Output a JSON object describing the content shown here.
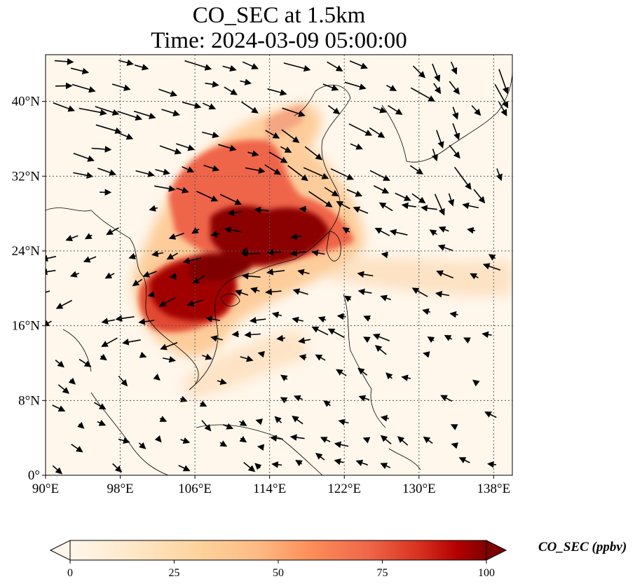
{
  "title": {
    "line1": "CO_SEC at 1.5km",
    "line2": "Time: 2024-03-09 05:00:00"
  },
  "map": {
    "lon_range": [
      90,
      140
    ],
    "lat_range": [
      0,
      45
    ],
    "lon_ticks": [
      "90°E",
      "98°E",
      "106°E",
      "114°E",
      "122°E",
      "130°E",
      "138°E"
    ],
    "lat_ticks": [
      "0°",
      "8°N",
      "16°N",
      "24°N",
      "32°N",
      "40°N"
    ],
    "gridlines": true,
    "field": "CO_SEC",
    "colormap": "OrRd",
    "colors": {
      "low": "#fff7ec",
      "mid": "#fdbb84",
      "high": "#7f0000"
    }
  },
  "colorbar": {
    "label": "CO_SEC (ppbv)",
    "ticks": [
      "0",
      "25",
      "50",
      "75",
      "100"
    ],
    "range": [
      0,
      100
    ],
    "extend": "both"
  }
}
